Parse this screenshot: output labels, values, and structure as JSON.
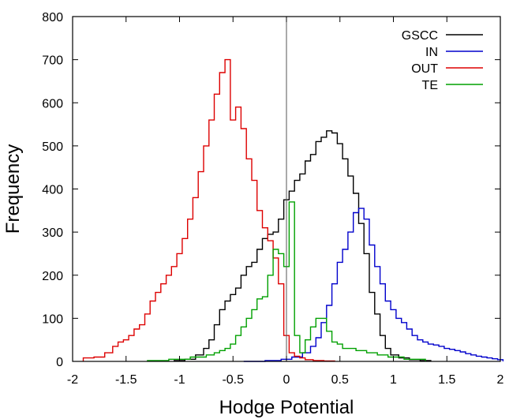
{
  "chart_data": {
    "type": "line",
    "xlabel": "Hodge Potential",
    "ylabel": "Frequency",
    "xlim": [
      -2,
      2
    ],
    "ylim": [
      0,
      800
    ],
    "xticks": [
      -2,
      -1.5,
      -1,
      -0.5,
      0,
      0.5,
      1,
      1.5,
      2
    ],
    "yticks": [
      0,
      100,
      200,
      300,
      400,
      500,
      600,
      700,
      800
    ],
    "xtick_labels": [
      "-2",
      "-1.5",
      "-1",
      "-0.5",
      "0",
      "0.5",
      "1",
      "1.5",
      "2"
    ],
    "ytick_labels": [
      "0",
      "100",
      "200",
      "300",
      "400",
      "500",
      "600",
      "700",
      "800"
    ],
    "vertical_reference_line": 0,
    "grid": false,
    "legend_position": "top-right",
    "series": [
      {
        "name": "GSCC",
        "color": "#000000",
        "x": [
          -1.0,
          -0.9,
          -0.8,
          -0.75,
          -0.7,
          -0.65,
          -0.6,
          -0.55,
          -0.5,
          -0.45,
          -0.4,
          -0.35,
          -0.3,
          -0.25,
          -0.2,
          -0.15,
          -0.1,
          -0.05,
          0.0,
          0.05,
          0.1,
          0.15,
          0.2,
          0.25,
          0.3,
          0.35,
          0.4,
          0.45,
          0.5,
          0.55,
          0.6,
          0.65,
          0.7,
          0.75,
          0.8,
          0.85,
          0.9,
          0.95,
          1.0,
          1.1,
          1.2,
          1.3
        ],
        "y": [
          2,
          5,
          15,
          30,
          50,
          85,
          120,
          140,
          155,
          170,
          200,
          220,
          230,
          260,
          285,
          295,
          300,
          330,
          375,
          395,
          420,
          435,
          465,
          480,
          510,
          520,
          535,
          530,
          505,
          470,
          430,
          390,
          320,
          250,
          160,
          110,
          60,
          30,
          15,
          8,
          4,
          2
        ]
      },
      {
        "name": "IN",
        "color": "#0000cc",
        "x": [
          -0.3,
          -0.1,
          0.0,
          0.1,
          0.2,
          0.25,
          0.3,
          0.35,
          0.4,
          0.45,
          0.5,
          0.55,
          0.6,
          0.65,
          0.7,
          0.75,
          0.8,
          0.85,
          0.9,
          0.95,
          1.0,
          1.05,
          1.1,
          1.15,
          1.2,
          1.25,
          1.3,
          1.35,
          1.4,
          1.45,
          1.5,
          1.55,
          1.6,
          1.65,
          1.7,
          1.75,
          1.8,
          1.85,
          1.9,
          1.95,
          2.0
        ],
        "y": [
          0,
          2,
          5,
          10,
          20,
          35,
          55,
          90,
          130,
          180,
          230,
          260,
          300,
          345,
          355,
          330,
          270,
          220,
          180,
          140,
          120,
          100,
          90,
          75,
          60,
          50,
          45,
          40,
          38,
          35,
          30,
          28,
          25,
          22,
          18,
          15,
          12,
          10,
          8,
          6,
          4
        ]
      },
      {
        "name": "OUT",
        "color": "#dd0000",
        "x": [
          -1.85,
          -1.75,
          -1.65,
          -1.6,
          -1.55,
          -1.5,
          -1.45,
          -1.4,
          -1.35,
          -1.3,
          -1.25,
          -1.2,
          -1.15,
          -1.1,
          -1.05,
          -1.0,
          -0.95,
          -0.9,
          -0.85,
          -0.8,
          -0.75,
          -0.7,
          -0.65,
          -0.6,
          -0.55,
          -0.5,
          -0.45,
          -0.4,
          -0.35,
          -0.3,
          -0.25,
          -0.2,
          -0.15,
          -0.1,
          -0.05,
          0.0,
          0.05,
          0.1,
          0.15,
          0.2,
          0.3,
          0.4
        ],
        "y": [
          8,
          10,
          20,
          35,
          45,
          50,
          60,
          75,
          85,
          110,
          140,
          160,
          180,
          200,
          220,
          250,
          285,
          330,
          380,
          440,
          500,
          560,
          620,
          670,
          700,
          560,
          590,
          540,
          470,
          420,
          350,
          310,
          280,
          240,
          180,
          60,
          20,
          12,
          8,
          4,
          2,
          1
        ]
      },
      {
        "name": "TE",
        "color": "#00a000",
        "x": [
          -1.2,
          -1.0,
          -0.8,
          -0.7,
          -0.65,
          -0.6,
          -0.55,
          -0.5,
          -0.45,
          -0.4,
          -0.35,
          -0.3,
          -0.25,
          -0.2,
          -0.15,
          -0.1,
          -0.05,
          0.0,
          0.05,
          0.1,
          0.15,
          0.2,
          0.25,
          0.3,
          0.35,
          0.4,
          0.45,
          0.5,
          0.55,
          0.6,
          0.7,
          0.8,
          0.9,
          1.0,
          1.2
        ],
        "y": [
          2,
          5,
          10,
          15,
          20,
          25,
          30,
          40,
          60,
          80,
          100,
          120,
          145,
          150,
          200,
          260,
          250,
          220,
          370,
          60,
          20,
          50,
          80,
          100,
          100,
          70,
          45,
          40,
          30,
          30,
          25,
          20,
          15,
          10,
          5
        ]
      }
    ]
  }
}
